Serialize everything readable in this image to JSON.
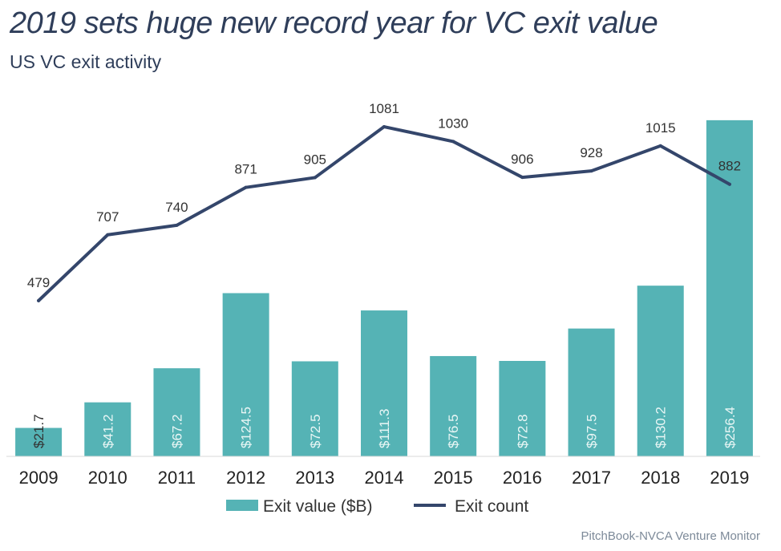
{
  "title": "2019 sets huge new record year for VC exit value",
  "subtitle": "US VC exit activity",
  "source": "PitchBook-NVCA Venture Monitor",
  "colors": {
    "bar": "#55b3b5",
    "line": "#34466b",
    "title": "#2f3e5a"
  },
  "chart_data": {
    "type": "bar",
    "categories": [
      "2009",
      "2010",
      "2011",
      "2012",
      "2013",
      "2014",
      "2015",
      "2016",
      "2017",
      "2018",
      "2019"
    ],
    "series": [
      {
        "name": "Exit value ($B)",
        "type": "bar",
        "axis": "left",
        "values": [
          21.7,
          41.2,
          67.2,
          124.5,
          72.5,
          111.3,
          76.5,
          72.8,
          97.5,
          130.2,
          256.4
        ],
        "labels": [
          "$21.7",
          "$41.2",
          "$67.2",
          "$124.5",
          "$72.5",
          "$111.3",
          "$76.5",
          "$72.8",
          "$97.5",
          "$130.2",
          "$256.4"
        ]
      },
      {
        "name": "Exit count",
        "type": "line",
        "axis": "right",
        "values": [
          479,
          707,
          740,
          871,
          905,
          1081,
          1030,
          906,
          928,
          1015,
          882
        ],
        "labels": [
          "479",
          "707",
          "740",
          "871",
          "905",
          "1081",
          "1030",
          "906",
          "928",
          "1015",
          "882"
        ]
      }
    ],
    "ylim": [
      0,
      260
    ],
    "y2lim": [
      -60,
      1120
    ],
    "grid": false,
    "legend": "bottom"
  }
}
